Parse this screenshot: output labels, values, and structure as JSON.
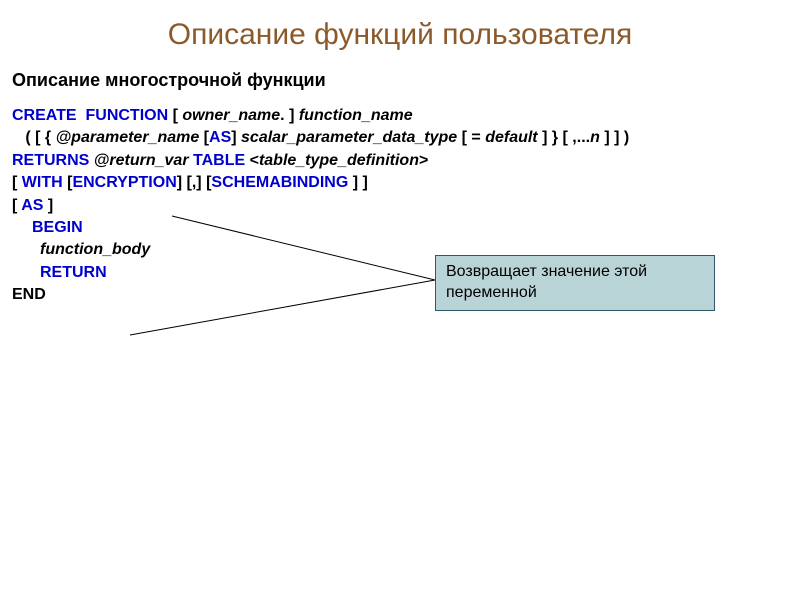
{
  "title": "Описание функций пользователя",
  "subtitle": "Описание многострочной функции",
  "code": {
    "l1": {
      "kw1": "CREATE  FUNCTION",
      "t1": " [ ",
      "it1": "owner_name",
      "t2": ". ] ",
      "it2": "function_name"
    },
    "l2": {
      "t1": "   ( [ { ",
      "it1": "@parameter_name",
      "t2": " [",
      "kw1": "AS",
      "t3": "] ",
      "it2": "scalar_parameter_data_type",
      "t4": " [ = ",
      "it3": "default",
      "t5": " ] } [ ,...",
      "it4": "n",
      "t6": " ] ] )"
    },
    "l3": {
      "kw1": "RETURNS",
      "t1": " ",
      "it1": "@return_var ",
      "kw2": "TABLE",
      "t2": " <",
      "it2": "table_type_definition",
      "t3": ">"
    },
    "l4": {
      "t1": "[ ",
      "kw1": "WITH",
      "t2": " [",
      "kw2": "ENCRYPTION",
      "t3": "] [,] [",
      "kw3": "SCHEMABINDING",
      "t4": " ] ]"
    },
    "l5": {
      "t1": "[ ",
      "kw1": "AS",
      "t2": " ]"
    },
    "l6": {
      "kw1": "BEGIN"
    },
    "l7": {
      "it1": "function_body"
    },
    "l8": {
      "kw1": "RETURN"
    },
    "l9": {
      "t1": "END"
    }
  },
  "callout": "Возвращает значение этой переменной",
  "callout_lines": {
    "from": [
      435,
      280
    ],
    "to1": [
      172,
      216
    ],
    "to2": [
      130,
      335
    ]
  },
  "colors": {
    "title": "#8b5a2b",
    "keyword": "#0000cc",
    "text": "#000000",
    "callout_bg": "#b9d4d6",
    "callout_border": "#2f5a6b",
    "line": "#000000"
  }
}
